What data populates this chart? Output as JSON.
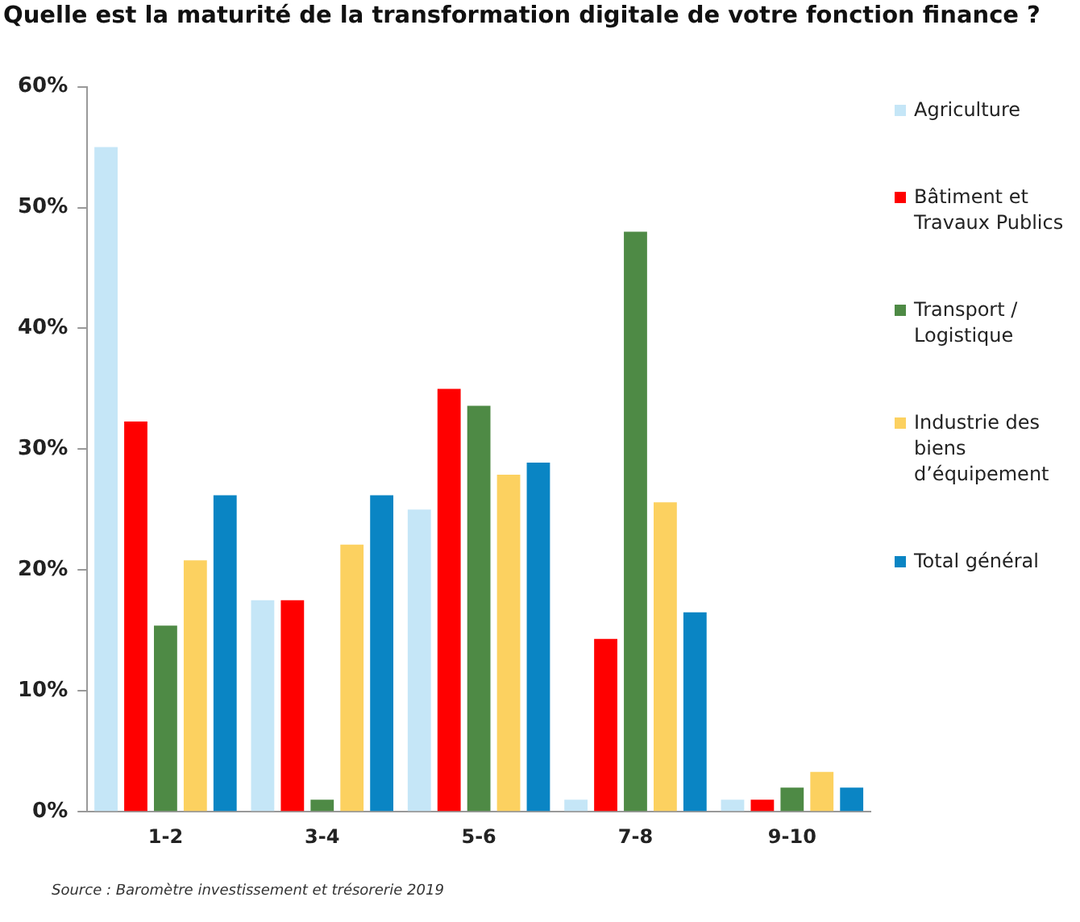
{
  "chart_data": {
    "type": "bar",
    "title": "Quelle est la maturité de la transformation digitale  de votre fonction finance ?",
    "categories": [
      "1-2",
      "3-4",
      "5-6",
      "7-8",
      "9-10"
    ],
    "series": [
      {
        "name": "Agriculture",
        "color": "#c5e6f7",
        "values": [
          55,
          17.5,
          25,
          1,
          1
        ]
      },
      {
        "name": "Bâtiment et Travaux Publics",
        "color": "#ff0000",
        "values": [
          32.3,
          17.5,
          35,
          14.3,
          1
        ]
      },
      {
        "name": "Transport / Logistique",
        "color": "#4e8a45",
        "values": [
          15.4,
          1,
          33.6,
          48,
          2
        ]
      },
      {
        "name": "Industrie des biens d’équipement",
        "color": "#fcd160",
        "values": [
          20.8,
          22.1,
          27.9,
          25.6,
          3.3
        ]
      },
      {
        "name": "Total général",
        "color": "#0a85c4",
        "values": [
          26.2,
          26.2,
          28.9,
          16.5,
          2
        ]
      }
    ],
    "ylim": [
      0,
      60
    ],
    "yticks": [
      {
        "value": 0,
        "label": "0%"
      },
      {
        "value": 10,
        "label": "10%"
      },
      {
        "value": 20,
        "label": "20%"
      },
      {
        "value": 30,
        "label": "30%"
      },
      {
        "value": 40,
        "label": "40%"
      },
      {
        "value": 50,
        "label": "50%"
      },
      {
        "value": 60,
        "label": "60%"
      }
    ],
    "grid": false,
    "legend": "right",
    "annotations": [
      "Source : Baromètre investissement et trésorerie 2019"
    ]
  }
}
